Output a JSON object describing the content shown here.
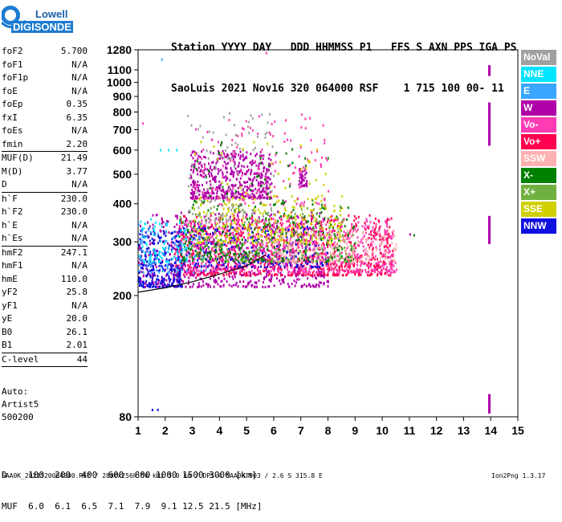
{
  "logo": {
    "line1": "Lowell",
    "line2": "DIGISONDE"
  },
  "header": {
    "labels": "Station YYYY DAY   DDD HHMMSS P1   FFS S AXN PPS IGA PS",
    "values": "SaoLuis 2021 Nov16 320 064000 RSF    1 715 100 00- 11"
  },
  "parameters": [
    [
      {
        "name": "foF2",
        "value": "5.700"
      },
      {
        "name": "foF1",
        "value": "N/A"
      },
      {
        "name": "foF1p",
        "value": "N/A"
      },
      {
        "name": "foE",
        "value": "N/A"
      },
      {
        "name": "foEp",
        "value": "0.35"
      },
      {
        "name": "fxI",
        "value": "6.35"
      },
      {
        "name": "foEs",
        "value": "N/A"
      },
      {
        "name": "fmin",
        "value": "2.20"
      }
    ],
    [
      {
        "name": "MUF(D)",
        "value": "21.49"
      },
      {
        "name": "M(D)",
        "value": "3.77"
      },
      {
        "name": "D",
        "value": "N/A"
      }
    ],
    [
      {
        "name": "h`F",
        "value": "230.0"
      },
      {
        "name": "h`F2",
        "value": "230.0"
      },
      {
        "name": "h`E",
        "value": "N/A"
      },
      {
        "name": "h`Es",
        "value": "N/A"
      }
    ],
    [
      {
        "name": "hmF2",
        "value": "247.1"
      },
      {
        "name": "hmF1",
        "value": "N/A"
      },
      {
        "name": "hmE",
        "value": "110.0"
      },
      {
        "name": "yF2",
        "value": "25.8"
      },
      {
        "name": "yF1",
        "value": "N/A"
      },
      {
        "name": "yE",
        "value": "20.0"
      },
      {
        "name": "B0",
        "value": "26.1"
      },
      {
        "name": "B1",
        "value": "2.01"
      }
    ],
    [
      {
        "name": "C-level",
        "value": "44"
      }
    ]
  ],
  "auto_info": [
    "Auto:",
    "Artist5",
    "500200"
  ],
  "legend": [
    {
      "label": "NoVal",
      "color": "#a0a0a0"
    },
    {
      "label": "NNE",
      "color": "#00e5ff"
    },
    {
      "label": "E",
      "color": "#3aa6ff"
    },
    {
      "label": "W",
      "color": "#b000a8"
    },
    {
      "label": "Vo-",
      "color": "#ff3cb4"
    },
    {
      "label": "Vo+",
      "color": "#ff0050"
    },
    {
      "label": "SSW",
      "color": "#ffb0b0"
    },
    {
      "label": "X-",
      "color": "#008000"
    },
    {
      "label": "X+",
      "color": "#70b040"
    },
    {
      "label": "SSE",
      "color": "#d0d000"
    },
    {
      "label": "NNW",
      "color": "#1010e0"
    }
  ],
  "d_muf": {
    "d_line": "D    100  200  400  600  800 1000 1500 3000 [km]",
    "muf_line": "MUF  6.0  6.1  6.5  7.1  7.9  9.1 12.5 21.5 [MHz]"
  },
  "footer": {
    "left": "SAA0K_2021320064000.RSF / 280fx256h 50 kHz 5.0 km / DPS-4 SAA0K 903 / 2.6 S 315.8 E",
    "right": "Ion2Png 1.3.17"
  },
  "chart_data": {
    "type": "scatter",
    "title": "",
    "xlabel": "",
    "ylabel": "",
    "xlim": [
      1,
      15
    ],
    "ylim": [
      80,
      1280
    ],
    "y_scale": "log",
    "xticks": [
      1,
      2,
      3,
      4,
      5,
      6,
      7,
      8,
      9,
      10,
      11,
      12,
      13,
      14,
      15
    ],
    "yticks": [
      80,
      200,
      300,
      400,
      500,
      600,
      700,
      800,
      900,
      1000,
      1100,
      1280
    ],
    "grid": false,
    "legend_position": "right",
    "trace_profile": {
      "name": "F2 trace",
      "x": [
        1.0,
        2.0,
        3.0,
        4.0,
        5.0,
        5.4,
        5.7
      ],
      "y": [
        205,
        212,
        222,
        235,
        250,
        262,
        272
      ]
    },
    "clusters": [
      {
        "series": "Vo+",
        "color": "#ff0050",
        "fmin": 2.3,
        "fmax": 10.4,
        "hmin": 235,
        "hmax": 370,
        "n": 900
      },
      {
        "series": "Vo-",
        "color": "#ff3cb4",
        "fmin": 2.3,
        "fmax": 10.5,
        "hmin": 240,
        "hmax": 360,
        "n": 700
      },
      {
        "series": "W",
        "color": "#b000a8",
        "fmin": 1.0,
        "fmax": 8.0,
        "hmin": 215,
        "hmax": 380,
        "n": 600
      },
      {
        "series": "W",
        "color": "#b000a8",
        "fmin": 2.9,
        "fmax": 5.9,
        "hmin": 420,
        "hmax": 600,
        "n": 500
      },
      {
        "series": "W",
        "color": "#b000a8",
        "fmin": 6.9,
        "fmax": 7.2,
        "hmin": 460,
        "hmax": 530,
        "n": 40
      },
      {
        "series": "NNW",
        "color": "#1010e0",
        "fmin": 1.0,
        "fmax": 2.6,
        "hmin": 215,
        "hmax": 330,
        "n": 250
      },
      {
        "series": "NNW",
        "color": "#1010e0",
        "fmin": 2.5,
        "fmax": 8.0,
        "hmin": 250,
        "hmax": 340,
        "n": 200
      },
      {
        "series": "X-",
        "color": "#008000",
        "fmin": 2.5,
        "fmax": 9.0,
        "hmin": 260,
        "hmax": 400,
        "n": 300
      },
      {
        "series": "X+",
        "color": "#70b040",
        "fmin": 2.5,
        "fmax": 9.0,
        "hmin": 260,
        "hmax": 400,
        "n": 200
      },
      {
        "series": "SSE",
        "color": "#d0d000",
        "fmin": 3.0,
        "fmax": 8.5,
        "hmin": 300,
        "hmax": 430,
        "n": 250
      },
      {
        "series": "SSW",
        "color": "#ffb0b0",
        "fmin": 6.0,
        "fmax": 10.5,
        "hmin": 260,
        "hmax": 330,
        "n": 200
      },
      {
        "series": "NNE",
        "color": "#00e5ff",
        "fmin": 1.0,
        "fmax": 2.8,
        "hmin": 260,
        "hmax": 360,
        "n": 80
      },
      {
        "series": "E",
        "color": "#3aa6ff",
        "fmin": 1.0,
        "fmax": 3.5,
        "hmin": 240,
        "hmax": 350,
        "n": 80
      },
      {
        "series": "NoVal",
        "color": "#a0a0a0",
        "fmin": 2.8,
        "fmax": 6.0,
        "hmin": 350,
        "hmax": 800,
        "n": 120
      },
      {
        "series": "Vo-",
        "color": "#ff3cb4",
        "fmin": 3.0,
        "fmax": 8.0,
        "hmin": 400,
        "hmax": 800,
        "n": 140
      },
      {
        "series": "X-",
        "color": "#008000",
        "fmin": 3.0,
        "fmax": 8.0,
        "hmin": 400,
        "hmax": 650,
        "n": 50
      },
      {
        "series": "SSE",
        "color": "#d0d000",
        "fmin": 3.0,
        "fmax": 8.0,
        "hmin": 400,
        "hmax": 650,
        "n": 40
      }
    ],
    "segments": [
      {
        "series": "W",
        "color": "#b000a8",
        "x": 13.95,
        "y_from": 1050,
        "y_to": 1140
      },
      {
        "series": "W",
        "color": "#b000a8",
        "x": 13.95,
        "y_from": 620,
        "y_to": 860
      },
      {
        "series": "W",
        "color": "#b000a8",
        "x": 13.95,
        "y_from": 295,
        "y_to": 365
      },
      {
        "series": "W",
        "color": "#b000a8",
        "x": 13.95,
        "y_from": 82,
        "y_to": 95
      }
    ],
    "isolated_points": [
      {
        "color": "#3aa6ff",
        "x": 1.85,
        "y": 1200
      },
      {
        "color": "#ff3cb4",
        "x": 1.15,
        "y": 740
      },
      {
        "color": "#1010e0",
        "x": 1.5,
        "y": 85
      },
      {
        "color": "#1010e0",
        "x": 1.7,
        "y": 85
      },
      {
        "color": "#ff3cb4",
        "x": 5.7,
        "y": 1260
      },
      {
        "color": "#00e5ff",
        "x": 1.8,
        "y": 605
      },
      {
        "color": "#00e5ff",
        "x": 2.1,
        "y": 605
      },
      {
        "color": "#00e5ff",
        "x": 2.4,
        "y": 605
      },
      {
        "color": "#b000a8",
        "x": 11.0,
        "y": 320
      },
      {
        "color": "#008000",
        "x": 11.15,
        "y": 318
      }
    ]
  }
}
